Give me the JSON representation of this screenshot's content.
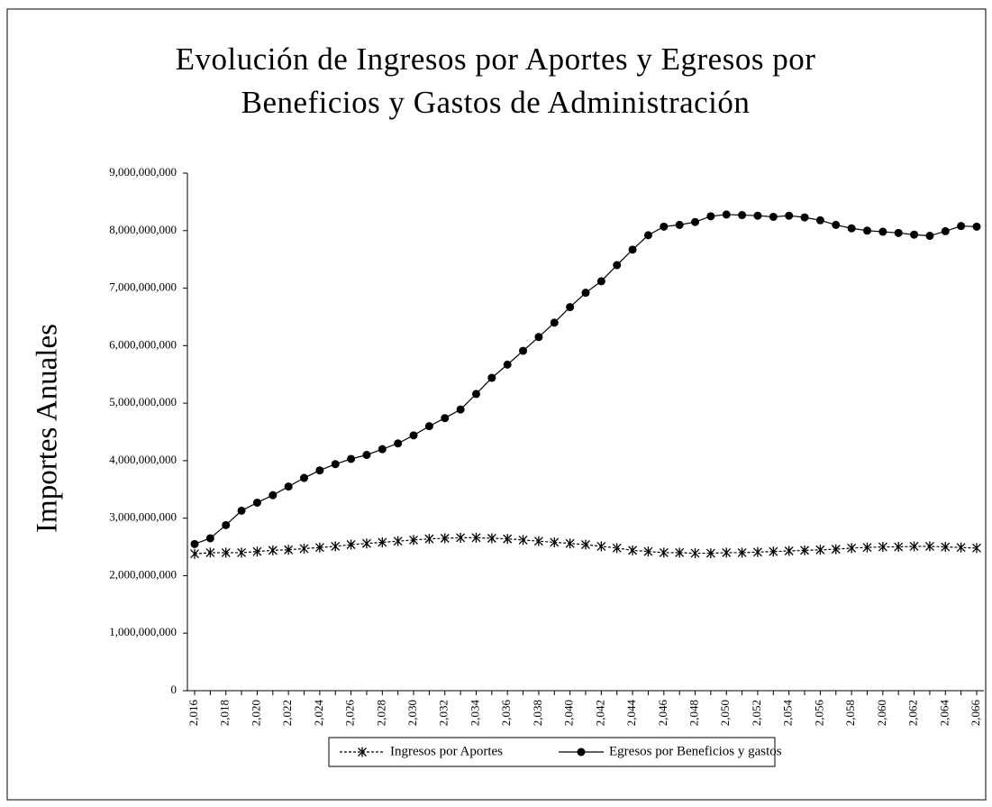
{
  "chart_data": {
    "type": "line",
    "title": "Evolución de Ingresos por Aportes y Egresos por Beneficios y Gastos de Administración",
    "ylabel": "Importes Anuales",
    "categories": [
      "2,016",
      null,
      "2,018",
      null,
      "2,020",
      null,
      "2,022",
      null,
      "2,024",
      null,
      "2,026",
      null,
      "2,028",
      null,
      "2,030",
      null,
      "2,032",
      null,
      "2,034",
      null,
      "2,036",
      null,
      "2,038",
      null,
      "2,040",
      null,
      "2,042",
      null,
      "2,044",
      null,
      "2,046",
      null,
      "2,048",
      null,
      "2,050",
      null,
      "2,052",
      null,
      "2,054",
      null,
      "2,056",
      null,
      "2,058",
      null,
      "2,060",
      null,
      "2,062",
      null,
      "2,064",
      null,
      "2,066"
    ],
    "series": [
      {
        "name": "Ingresos por Aportes",
        "color": "#000000",
        "marker": "x",
        "dashed": true,
        "values": [
          2380000000,
          2400000000,
          2400000000,
          2400000000,
          2420000000,
          2440000000,
          2450000000,
          2470000000,
          2490000000,
          2510000000,
          2540000000,
          2560000000,
          2580000000,
          2600000000,
          2620000000,
          2640000000,
          2650000000,
          2660000000,
          2660000000,
          2650000000,
          2640000000,
          2620000000,
          2600000000,
          2580000000,
          2560000000,
          2540000000,
          2510000000,
          2480000000,
          2440000000,
          2420000000,
          2400000000,
          2400000000,
          2390000000,
          2390000000,
          2400000000,
          2400000000,
          2410000000,
          2420000000,
          2430000000,
          2440000000,
          2450000000,
          2460000000,
          2480000000,
          2490000000,
          2500000000,
          2500000000,
          2510000000,
          2510000000,
          2500000000,
          2490000000,
          2480000000
        ]
      },
      {
        "name": "Egresos por Beneficios y gastos",
        "color": "#000000",
        "marker": "circle",
        "dashed": false,
        "values": [
          2550000000,
          2650000000,
          2880000000,
          3130000000,
          3270000000,
          3400000000,
          3550000000,
          3700000000,
          3830000000,
          3940000000,
          4030000000,
          4100000000,
          4200000000,
          4300000000,
          4440000000,
          4600000000,
          4740000000,
          4890000000,
          5160000000,
          5440000000,
          5670000000,
          5910000000,
          6150000000,
          6400000000,
          6670000000,
          6920000000,
          7120000000,
          7400000000,
          7670000000,
          7920000000,
          8070000000,
          8100000000,
          8150000000,
          8250000000,
          8280000000,
          8270000000,
          8260000000,
          8240000000,
          8260000000,
          8230000000,
          8180000000,
          8100000000,
          8040000000,
          8000000000,
          7980000000,
          7960000000,
          7930000000,
          7910000000,
          7990000000,
          8080000000,
          8070000000
        ]
      }
    ],
    "ylim": [
      0,
      9000000000
    ],
    "yticks": [
      0,
      {
        "value": 1000000000,
        "label": "1,000,000,000"
      },
      {
        "value": 2000000000,
        "label": "2,000,000,000"
      },
      {
        "value": 3000000000,
        "label": "3,000,000,000"
      },
      {
        "value": 4000000000,
        "label": "4,000,000,000"
      },
      {
        "value": 5000000000,
        "label": "5,000,000,000"
      },
      {
        "value": 6000000000,
        "label": "6,000,000,000"
      },
      {
        "value": 7000000000,
        "label": "7,000,000,000"
      },
      {
        "value": 8000000000,
        "label": "8,000,000,000"
      },
      {
        "value": 9000000000,
        "label": "9,000,000,000"
      }
    ],
    "grid": false,
    "legend": "bottom"
  }
}
